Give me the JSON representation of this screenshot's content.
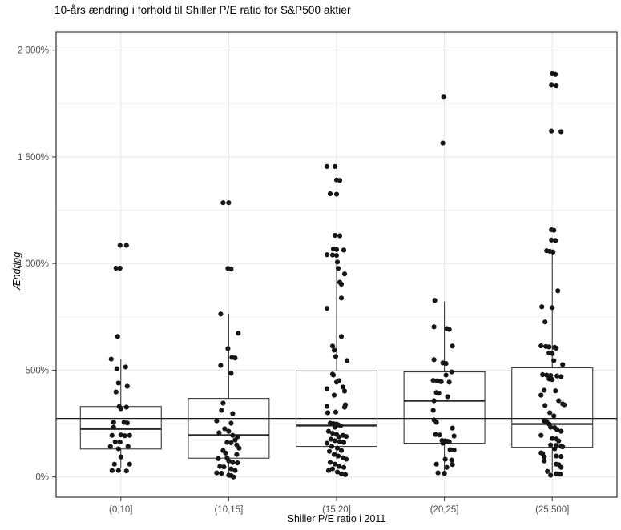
{
  "page": {
    "title": "10-års ændring i forhold til Shiller P/E ratio for S&P500 aktier"
  },
  "chart_data": {
    "type": "boxplot",
    "subtype": "boxplot_with_jitter",
    "title": "10-års ændring i forhold til Shiller P/E ratio for S&P500 aktier",
    "xlabel": "Shiller P/E ratio i 2011",
    "ylabel": "Ændring",
    "legend_position": "none",
    "grid": true,
    "categories": [
      "(0,10]",
      "(10,15]",
      "(15,20]",
      "(20,25]",
      "(25,500]"
    ],
    "y_ticks": [
      {
        "value": 0,
        "label": "0%"
      },
      {
        "value": 500,
        "label": "500%"
      },
      {
        "value": 1000,
        "label": "1 000%"
      },
      {
        "value": 1500,
        "label": "1 500%"
      },
      {
        "value": 2000,
        "label": "2 000%"
      }
    ],
    "y_minor_ticks": [
      250,
      750,
      1250,
      1750
    ],
    "ylim": [
      -95,
      2085
    ],
    "y_unit": "%",
    "reference_line": 274,
    "colors": {
      "background": "#ffffff",
      "panel_fill": "#ffffff",
      "panel_border": "#333333",
      "grid_major": "#e4e4e4",
      "grid_minor": "#f1f1f1",
      "box_stroke": "#3a3a3a",
      "median": "#2b2b2b",
      "whisker": "#2b2b2b",
      "reference": "#1a1a1a",
      "point": "#161616",
      "tick_label": "#4d4d4d",
      "tick_mark": "#333333"
    },
    "boxes": [
      {
        "category": "(0,10]",
        "q1": 131,
        "median": 225,
        "q3": 330,
        "whisker_low": 40,
        "whisker_high": 552
      },
      {
        "category": "(10,15]",
        "q1": 88,
        "median": 196,
        "q3": 368,
        "whisker_low": 2,
        "whisker_high": 765
      },
      {
        "category": "(15,20]",
        "q1": 143,
        "median": 241,
        "q3": 496,
        "whisker_low": 84,
        "whisker_high": 1006
      },
      {
        "category": "(20,25]",
        "q1": 158,
        "median": 357,
        "q3": 492,
        "whisker_low": 19,
        "whisker_high": 822
      },
      {
        "category": "(25,500]",
        "q1": 139,
        "median": 248,
        "q3": 511,
        "whisker_low": 19,
        "whisker_high": 1052
      }
    ],
    "points": [
      [
        [
          -1,
          1085
        ],
        [
          7,
          1085
        ],
        [
          -6,
          978
        ],
        [
          -1,
          978
        ],
        [
          -4,
          658
        ],
        [
          -12,
          552
        ],
        [
          -5,
          507
        ],
        [
          6,
          515
        ],
        [
          -3,
          440
        ],
        [
          8,
          425
        ],
        [
          -6,
          398
        ],
        [
          -2,
          330
        ],
        [
          7,
          327
        ],
        [
          0,
          320
        ],
        [
          -9,
          256
        ],
        [
          4,
          256
        ],
        [
          8,
          253
        ],
        [
          -9,
          233
        ],
        [
          -11,
          195
        ],
        [
          0,
          197
        ],
        [
          5,
          193
        ],
        [
          11,
          195
        ],
        [
          -7,
          165
        ],
        [
          -1,
          163
        ],
        [
          -13,
          143
        ],
        [
          9,
          143
        ],
        [
          -3,
          132
        ],
        [
          0,
          94
        ],
        [
          -8,
          60
        ],
        [
          11,
          60
        ],
        [
          -11,
          30
        ],
        [
          -3,
          30
        ],
        [
          7,
          28
        ]
      ],
      [
        [
          -7,
          1285
        ],
        [
          0,
          1285
        ],
        [
          -1,
          977
        ],
        [
          3,
          974
        ],
        [
          -10,
          763
        ],
        [
          12,
          673
        ],
        [
          -1,
          601
        ],
        [
          4,
          560
        ],
        [
          8,
          557
        ],
        [
          -10,
          522
        ],
        [
          3,
          485
        ],
        [
          -7,
          346
        ],
        [
          -9,
          312
        ],
        [
          5,
          297
        ],
        [
          -15,
          263
        ],
        [
          3,
          252
        ],
        [
          -5,
          226
        ],
        [
          0,
          214
        ],
        [
          -12,
          207
        ],
        [
          5,
          195
        ],
        [
          11,
          188
        ],
        [
          8,
          173
        ],
        [
          -2,
          162
        ],
        [
          3,
          160
        ],
        [
          10,
          150
        ],
        [
          13,
          135
        ],
        [
          -7,
          124
        ],
        [
          -4,
          112
        ],
        [
          10,
          105
        ],
        [
          -2,
          90
        ],
        [
          -13,
          86
        ],
        [
          0,
          75
        ],
        [
          5,
          68
        ],
        [
          11,
          66
        ],
        [
          -11,
          49
        ],
        [
          -6,
          47
        ],
        [
          3,
          38
        ],
        [
          8,
          30
        ],
        [
          -15,
          19
        ],
        [
          -9,
          17
        ],
        [
          0,
          8
        ],
        [
          3,
          6
        ],
        [
          6,
          0
        ]
      ],
      [
        [
          -12,
          1455
        ],
        [
          -2,
          1455
        ],
        [
          0,
          1392
        ],
        [
          4,
          1390
        ],
        [
          -8,
          1327
        ],
        [
          0,
          1325
        ],
        [
          -2,
          1132
        ],
        [
          4,
          1130
        ],
        [
          -4,
          1068
        ],
        [
          0,
          1065
        ],
        [
          9,
          1063
        ],
        [
          -12,
          1041
        ],
        [
          -5,
          1040
        ],
        [
          0,
          1038
        ],
        [
          1,
          1007
        ],
        [
          2,
          977
        ],
        [
          10,
          951
        ],
        [
          4,
          912
        ],
        [
          6,
          903
        ],
        [
          6,
          838
        ],
        [
          -12,
          790
        ],
        [
          6,
          658
        ],
        [
          -5,
          613
        ],
        [
          -3,
          594
        ],
        [
          -1,
          564
        ],
        [
          13,
          545
        ],
        [
          -5,
          481
        ],
        [
          -4,
          477
        ],
        [
          3,
          451
        ],
        [
          0,
          444
        ],
        [
          8,
          421
        ],
        [
          -12,
          413
        ],
        [
          10,
          402
        ],
        [
          -3,
          383
        ],
        [
          11,
          338
        ],
        [
          -12,
          331
        ],
        [
          10,
          327
        ],
        [
          -1,
          304
        ],
        [
          -11,
          301
        ],
        [
          -8,
          252
        ],
        [
          -4,
          250
        ],
        [
          0,
          248
        ],
        [
          2,
          244
        ],
        [
          5,
          240
        ],
        [
          -2,
          233
        ],
        [
          -10,
          214
        ],
        [
          -5,
          205
        ],
        [
          0,
          199
        ],
        [
          8,
          195
        ],
        [
          12,
          190
        ],
        [
          3,
          188
        ],
        [
          -7,
          177
        ],
        [
          -2,
          170
        ],
        [
          4,
          165
        ],
        [
          9,
          162
        ],
        [
          -12,
          158
        ],
        [
          -6,
          143
        ],
        [
          1,
          135
        ],
        [
          6,
          124
        ],
        [
          -9,
          120
        ],
        [
          -3,
          105
        ],
        [
          2,
          98
        ],
        [
          8,
          90
        ],
        [
          12,
          83
        ],
        [
          -8,
          68
        ],
        [
          -2,
          60
        ],
        [
          3,
          49
        ],
        [
          9,
          45
        ],
        [
          -5,
          38
        ],
        [
          -10,
          30
        ],
        [
          1,
          23
        ],
        [
          6,
          15
        ],
        [
          11,
          11
        ]
      ],
      [
        [
          -1,
          1780
        ],
        [
          -2,
          1565
        ],
        [
          -12,
          827
        ],
        [
          -13,
          703
        ],
        [
          3,
          695
        ],
        [
          6,
          691
        ],
        [
          10,
          613
        ],
        [
          -13,
          549
        ],
        [
          -2,
          534
        ],
        [
          2,
          531
        ],
        [
          9,
          492
        ],
        [
          2,
          477
        ],
        [
          -14,
          452
        ],
        [
          -9,
          450
        ],
        [
          -6,
          448
        ],
        [
          -4,
          446
        ],
        [
          6,
          444
        ],
        [
          -10,
          395
        ],
        [
          -7,
          392
        ],
        [
          4,
          376
        ],
        [
          -13,
          357
        ],
        [
          -14,
          312
        ],
        [
          -13,
          267
        ],
        [
          -10,
          256
        ],
        [
          10,
          229
        ],
        [
          -11,
          199
        ],
        [
          -6,
          197
        ],
        [
          12,
          192
        ],
        [
          -3,
          171
        ],
        [
          1,
          169
        ],
        [
          4,
          167
        ],
        [
          6,
          165
        ],
        [
          -2,
          158
        ],
        [
          7,
          128
        ],
        [
          12,
          126
        ],
        [
          1,
          83
        ],
        [
          9,
          79
        ],
        [
          -10,
          60
        ],
        [
          10,
          58
        ],
        [
          3,
          45
        ],
        [
          -8,
          19
        ],
        [
          0,
          17
        ]
      ],
      [
        [
          0,
          1890
        ],
        [
          4,
          1887
        ],
        [
          -1,
          1836
        ],
        [
          5,
          1833
        ],
        [
          -1,
          1621
        ],
        [
          11,
          1618
        ],
        [
          -1,
          1158
        ],
        [
          2,
          1156
        ],
        [
          -1,
          1110
        ],
        [
          4,
          1108
        ],
        [
          -7,
          1060
        ],
        [
          -3,
          1057
        ],
        [
          1,
          1054
        ],
        [
          7,
          872
        ],
        [
          -13,
          797
        ],
        [
          0,
          793
        ],
        [
          -9,
          726
        ],
        [
          -14,
          614
        ],
        [
          -8,
          611
        ],
        [
          -4,
          609
        ],
        [
          3,
          607
        ],
        [
          5,
          603
        ],
        [
          -4,
          581
        ],
        [
          0,
          578
        ],
        [
          2,
          545
        ],
        [
          13,
          526
        ],
        [
          -12,
          479
        ],
        [
          -7,
          477
        ],
        [
          -2,
          475
        ],
        [
          6,
          473
        ],
        [
          11,
          470
        ],
        [
          -4,
          459
        ],
        [
          0,
          456
        ],
        [
          -10,
          406
        ],
        [
          4,
          403
        ],
        [
          -14,
          383
        ],
        [
          8,
          357
        ],
        [
          13,
          342
        ],
        [
          15,
          338
        ],
        [
          -9,
          335
        ],
        [
          -3,
          301
        ],
        [
          2,
          286
        ],
        [
          -10,
          263
        ],
        [
          -7,
          260
        ],
        [
          -4,
          248
        ],
        [
          -2,
          233
        ],
        [
          3,
          231
        ],
        [
          6,
          222
        ],
        [
          11,
          214
        ],
        [
          -14,
          195
        ],
        [
          0,
          180
        ],
        [
          5,
          178
        ],
        [
          8,
          169
        ],
        [
          -2,
          150
        ],
        [
          5,
          148
        ],
        [
          11,
          143
        ],
        [
          13,
          141
        ],
        [
          3,
          132
        ],
        [
          -14,
          113
        ],
        [
          -12,
          110
        ],
        [
          -10,
          94
        ],
        [
          5,
          98
        ],
        [
          11,
          96
        ],
        [
          -10,
          75
        ],
        [
          5,
          60
        ],
        [
          8,
          58
        ],
        [
          11,
          45
        ],
        [
          -6,
          26
        ],
        [
          5,
          15
        ],
        [
          10,
          13
        ],
        [
          -2,
          8
        ]
      ]
    ]
  }
}
